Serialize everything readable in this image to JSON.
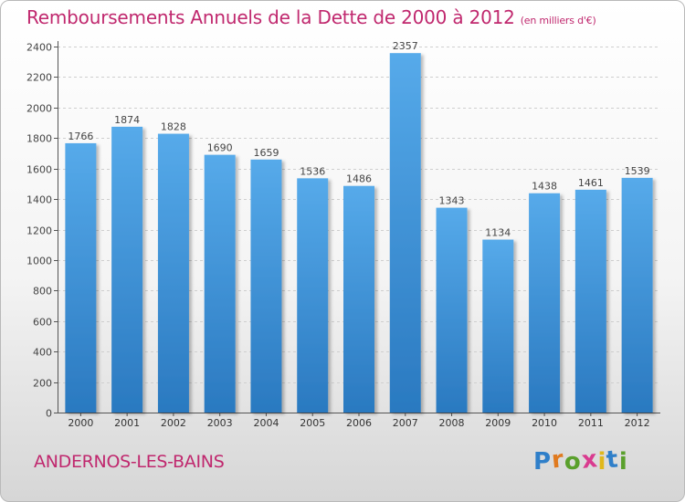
{
  "header": {
    "title": "Remboursements Annuels de la Dette de 2000 à 2012",
    "subtitle": "(en milliers d'€)"
  },
  "footer": {
    "city": "ANDERNOS-LES-BAINS",
    "brand": "Proxiti",
    "brand_colors": [
      "#2f7fc9",
      "#e07a1f",
      "#5aa02c",
      "#d93b8f",
      "#e0b81c",
      "#2f7fc9",
      "#5aa02c"
    ]
  },
  "chart_data": {
    "type": "bar",
    "categories": [
      "2000",
      "2001",
      "2002",
      "2003",
      "2004",
      "2005",
      "2006",
      "2007",
      "2008",
      "2009",
      "2010",
      "2011",
      "2012"
    ],
    "values": [
      1766,
      1874,
      1828,
      1690,
      1659,
      1536,
      1486,
      2357,
      1343,
      1134,
      1438,
      1461,
      1539
    ],
    "data_labels": [
      "1766",
      "1874",
      "1828",
      "1690",
      "1659",
      "1536",
      "1486",
      "2357",
      "1343",
      "1134",
      "1438",
      "1461",
      "1539"
    ],
    "y_ticks": [
      0,
      200,
      400,
      600,
      800,
      1000,
      1200,
      1400,
      1600,
      1800,
      2000,
      2200,
      2400
    ],
    "ylim": [
      0,
      2400
    ],
    "grid": true,
    "bar_color": "#4a9fe0",
    "bar_color_dark": "#2a79c0",
    "accent_color": "#c0286e"
  }
}
